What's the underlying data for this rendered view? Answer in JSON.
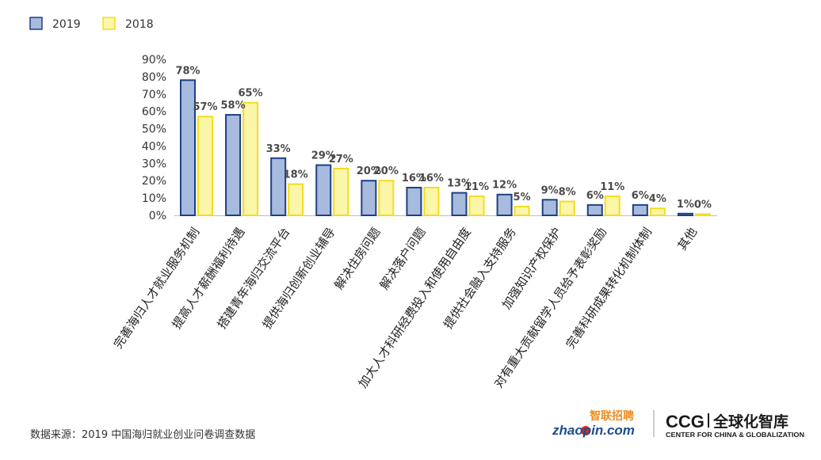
{
  "chart_data": {
    "type": "bar",
    "categories": [
      "完善海归人才就业服务机制",
      "提高人才薪酬福利待遇",
      "搭建青年海归交流平台",
      "提供海归创新创业辅导",
      "解决住房问题",
      "解决落户问题",
      "加大人才科研经费投入和使用自由度",
      "提供社会融入支持服务",
      "加强知识产权保护",
      "对有重大贡献留学人员给予表彰奖励",
      "完善科研成果转化机制体制",
      "其他"
    ],
    "series": [
      {
        "name": "2019",
        "values": [
          78,
          58,
          33,
          29,
          20,
          16,
          13,
          12,
          9,
          6,
          6,
          1
        ],
        "labels": [
          "78%",
          "58%",
          "33%",
          "29%",
          "20%",
          "16%",
          "13%",
          "12%",
          "9%",
          "6%",
          "6%",
          "1%"
        ]
      },
      {
        "name": "2018",
        "values": [
          57,
          65,
          18,
          27,
          20,
          16,
          11,
          5,
          8,
          11,
          4,
          0
        ],
        "labels": [
          "57%",
          "65%",
          "18%",
          "27%",
          "20%",
          "16%",
          "11%",
          "5%",
          "8%",
          "11%",
          "4%",
          "0%"
        ]
      }
    ],
    "yticks": [
      "0%",
      "10%",
      "20%",
      "30%",
      "40%",
      "50%",
      "60%",
      "70%",
      "80%",
      "90%"
    ],
    "ylim": [
      0,
      90
    ],
    "grid": false,
    "legend": "top-left",
    "colors": {
      "2019_fill": "#a7bbde",
      "2019_stroke": "#1f3f82",
      "2018_fill": "#fbf6a8",
      "2018_stroke": "#f3dd1d"
    }
  },
  "footer": {
    "source": "数据来源：2019 中国海归就业创业问卷调查数据"
  },
  "logos": {
    "zhaopin_cn": "智联招聘",
    "zhaopin_en": "zhaopin.com",
    "ccg_abbr": "CCG",
    "ccg_cn": "全球化智库",
    "ccg_en": "CENTER FOR CHINA & GLOBALIZATION"
  }
}
